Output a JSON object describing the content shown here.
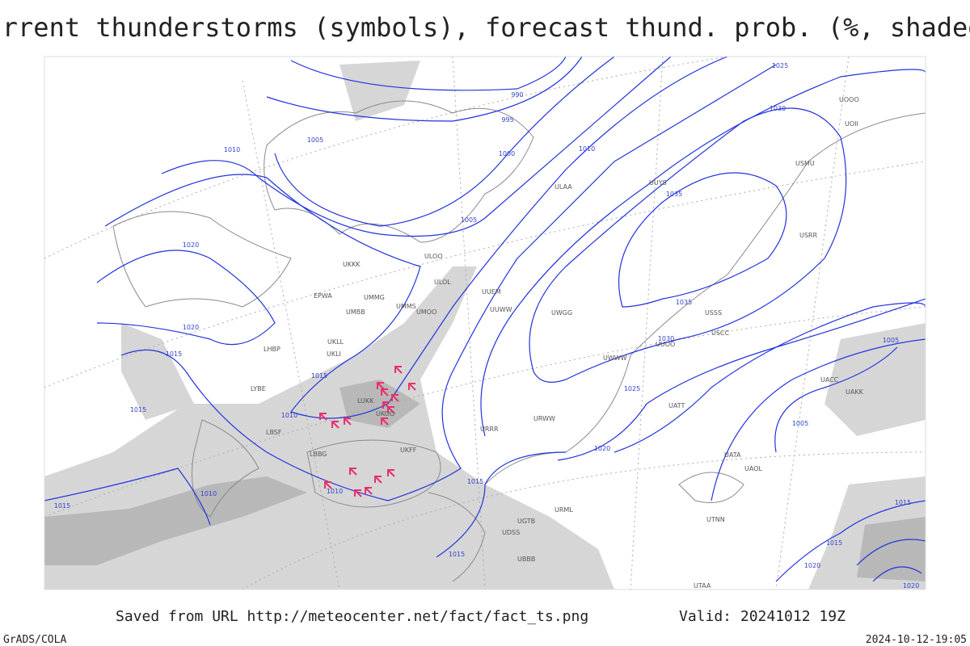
{
  "header": {
    "title": "Current thunderstorms (symbols), forecast thund. prob. (%, shaded)"
  },
  "map": {
    "isobar_labels": [
      990,
      995,
      1000,
      1005,
      1005,
      1010,
      1010,
      1025,
      1030,
      1035,
      1035,
      1030,
      1025,
      1020,
      1020,
      1015,
      1015,
      1015,
      1010,
      1010,
      1010,
      1015,
      1015,
      1015,
      1020,
      1005,
      1005,
      1015,
      1015,
      1020,
      1020
    ],
    "station_labels": [
      "UUYS",
      "ULAA",
      "ULOO",
      "ULOL",
      "UUEM",
      "UUWW",
      "UMMS",
      "UMOO",
      "UKKK",
      "UMMG",
      "EPWA",
      "UMBB",
      "UKLL",
      "UKLI",
      "LHBP",
      "LUKK",
      "UKOO",
      "UKFF",
      "URRR",
      "URWW",
      "UWWW",
      "UUOO",
      "USCC",
      "USSS",
      "USRR",
      "UOOO",
      "UOII",
      "USMU",
      "UWGG",
      "UATT",
      "UATA",
      "UAOL",
      "UACC",
      "UAKK",
      "UTNN",
      "UTAA",
      "URML",
      "UGTB",
      "UDSS",
      "UBBB",
      "LBSF",
      "LBBG",
      "LYBE"
    ]
  },
  "footer": {
    "source": "Saved from URL http://meteocenter.net/fact/fact_ts.png",
    "valid": "Valid: 20241012 19Z",
    "software": "GrADS/COLA",
    "timestamp": "2024-10-12-19:05"
  }
}
